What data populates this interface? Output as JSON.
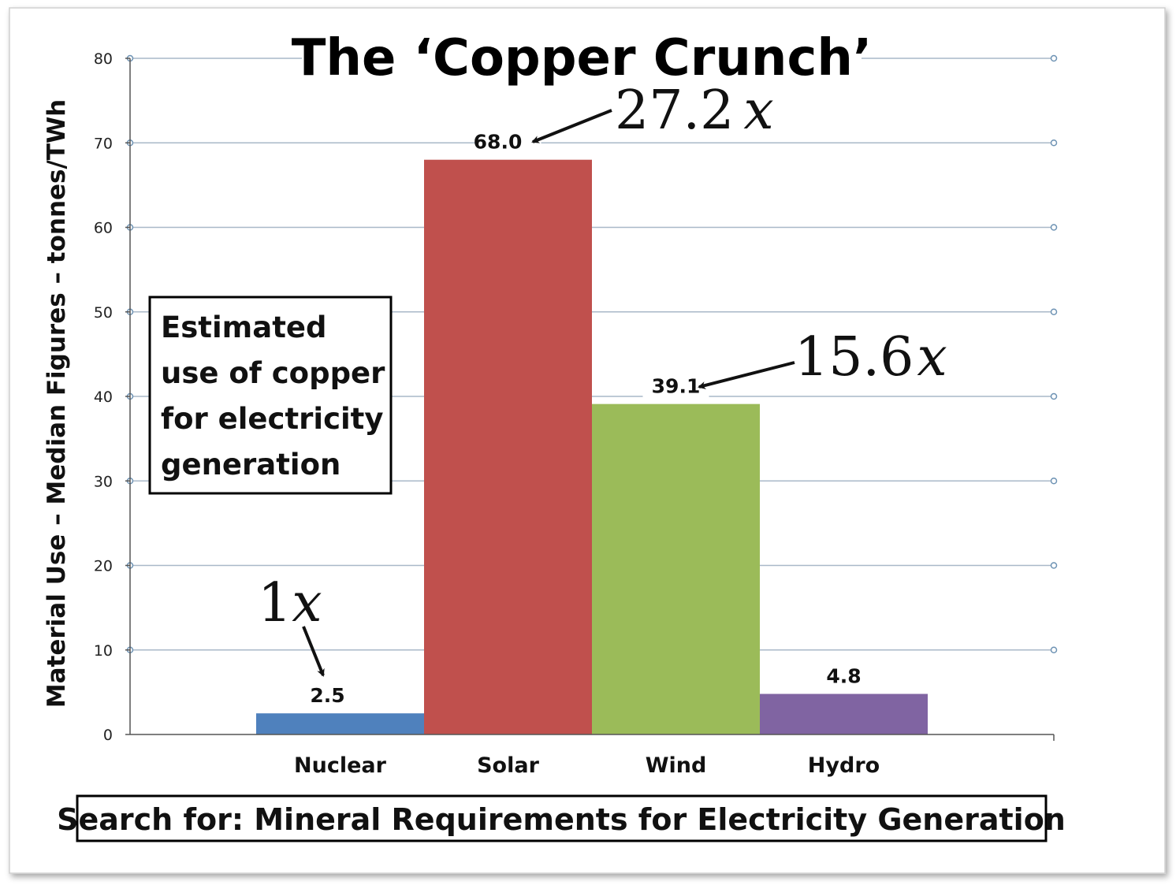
{
  "chart_data": {
    "type": "bar",
    "title": "The ‘Copper Crunch’",
    "ylabel": "Material Use – Median Figures – tonnes/TWh",
    "xlabel": "",
    "categories": [
      "Nuclear",
      "Solar",
      "Wind",
      "Hydro"
    ],
    "values": [
      2.5,
      68.0,
      39.1,
      4.8
    ],
    "value_labels": [
      "2.5",
      "68.0",
      "39.1",
      "4.8"
    ],
    "colors": [
      "#4f81bd",
      "#c0504d",
      "#9bbb59",
      "#8064a2"
    ],
    "ylim": [
      0,
      80
    ],
    "yticks": [
      0,
      10,
      20,
      30,
      40,
      50,
      60,
      70,
      80
    ],
    "grid": true,
    "annotations": [
      {
        "number": "1",
        "variable": "x",
        "target": "Nuclear"
      },
      {
        "number": "27.2",
        "variable": "x",
        "target": "Solar"
      },
      {
        "number": "15.6",
        "variable": "x",
        "target": "Wind"
      }
    ],
    "note_lines": [
      "Estimated",
      "use of copper",
      "for electricity",
      "generation"
    ],
    "footer": "Search for: Mineral Requirements for Electricity Generation"
  },
  "colors": {
    "grid": "#a9b8c8",
    "axis": "#555555",
    "marker": "#6e93b4"
  }
}
